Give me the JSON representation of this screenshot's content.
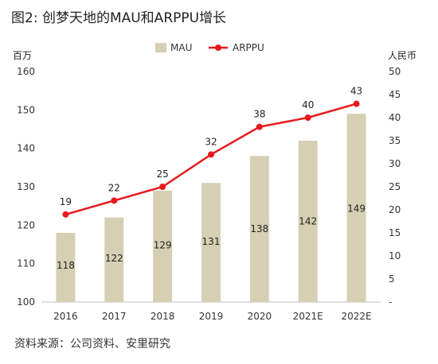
{
  "title": "图2: 创梦天地的MAU和ARPPU增长",
  "source": "资料来源：公司资料、安里研究",
  "chart_data": {
    "type": "bar+line",
    "categories": [
      "2016",
      "2017",
      "2018",
      "2019",
      "2020",
      "2021E",
      "2022E"
    ],
    "series": [
      {
        "name": "MAU",
        "type": "bar",
        "axis": "left",
        "values": [
          118,
          122,
          129,
          131,
          138,
          142,
          149
        ],
        "color": "#d6cfb3"
      },
      {
        "name": "ARPPU",
        "type": "line",
        "axis": "right",
        "values": [
          19,
          22,
          25,
          32,
          38,
          40,
          43
        ],
        "color": "#e8191e"
      }
    ],
    "left_axis": {
      "unit": "百万",
      "min": 100,
      "max": 160,
      "step": 10
    },
    "right_axis": {
      "unit": "人民币",
      "min": 0,
      "max": 50,
      "step": 5,
      "zero_label": "-"
    },
    "legend": {
      "position": "top-center"
    }
  }
}
